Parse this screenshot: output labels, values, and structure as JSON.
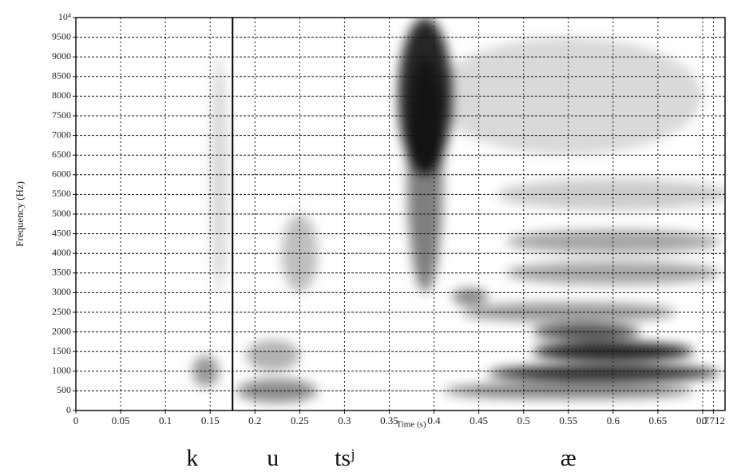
{
  "chart_data": {
    "type": "spectrogram",
    "xlabel": "Time (s)",
    "ylabel": "Frequency (Hz)",
    "xlim": [
      0,
      0.725
    ],
    "ylim": [
      0,
      10000
    ],
    "xticks": [
      0,
      0.05,
      0.1,
      0.15,
      0.2,
      0.25,
      0.3,
      0.35,
      0.4,
      0.45,
      0.5,
      0.55,
      0.6,
      0.65,
      0.7,
      0.712
    ],
    "yticks": [
      0,
      500,
      1000,
      1500,
      2000,
      2500,
      3000,
      3500,
      4000,
      4500,
      5000,
      5500,
      6000,
      6500,
      7000,
      7500,
      8000,
      8500,
      9000,
      9500,
      {
        "value": 10000,
        "label": "10⁴"
      }
    ],
    "grid": true,
    "cursor": 0.175,
    "segments": [
      {
        "label": "k",
        "t": 0.13
      },
      {
        "label": "u",
        "t": 0.22
      },
      {
        "label": "tsʲ",
        "t": 0.3
      },
      {
        "label": "æ",
        "t": 0.55
      }
    ],
    "energy": [
      {
        "t": [
          0.13,
          0.16
        ],
        "f": [
          600,
          1400
        ],
        "level": 0.4
      },
      {
        "t": [
          0.15,
          0.17
        ],
        "f": [
          3000,
          9000
        ],
        "level": 0.15
      },
      {
        "t": [
          0.18,
          0.27
        ],
        "f": [
          200,
          800
        ],
        "level": 0.45
      },
      {
        "t": [
          0.19,
          0.25
        ],
        "f": [
          1000,
          1800
        ],
        "level": 0.3
      },
      {
        "t": [
          0.23,
          0.27
        ],
        "f": [
          3000,
          5000
        ],
        "level": 0.25
      },
      {
        "t": [
          0.36,
          0.42
        ],
        "f": [
          6000,
          10000
        ],
        "level": 0.85
      },
      {
        "t": [
          0.37,
          0.41
        ],
        "f": [
          3000,
          9000
        ],
        "level": 0.5
      },
      {
        "t": [
          0.41,
          0.69
        ],
        "f": [
          300,
          700
        ],
        "level": 0.5
      },
      {
        "t": [
          0.46,
          0.72
        ],
        "f": [
          750,
          1150
        ],
        "level": 0.85
      },
      {
        "t": [
          0.51,
          0.69
        ],
        "f": [
          1250,
          1750
        ],
        "level": 0.85
      },
      {
        "t": [
          0.51,
          0.63
        ],
        "f": [
          1800,
          2200
        ],
        "level": 0.7
      },
      {
        "t": [
          0.43,
          0.67
        ],
        "f": [
          2250,
          2750
        ],
        "level": 0.4
      },
      {
        "t": [
          0.42,
          0.46
        ],
        "f": [
          2700,
          3100
        ],
        "level": 0.5
      },
      {
        "t": [
          0.48,
          0.72
        ],
        "f": [
          3200,
          3800
        ],
        "level": 0.35
      },
      {
        "t": [
          0.48,
          0.72
        ],
        "f": [
          4000,
          4600
        ],
        "level": 0.35
      },
      {
        "t": [
          0.47,
          0.73
        ],
        "f": [
          5100,
          5900
        ],
        "level": 0.2
      },
      {
        "t": [
          0.4,
          0.7
        ],
        "f": [
          6500,
          9500
        ],
        "level": 0.15
      }
    ]
  }
}
